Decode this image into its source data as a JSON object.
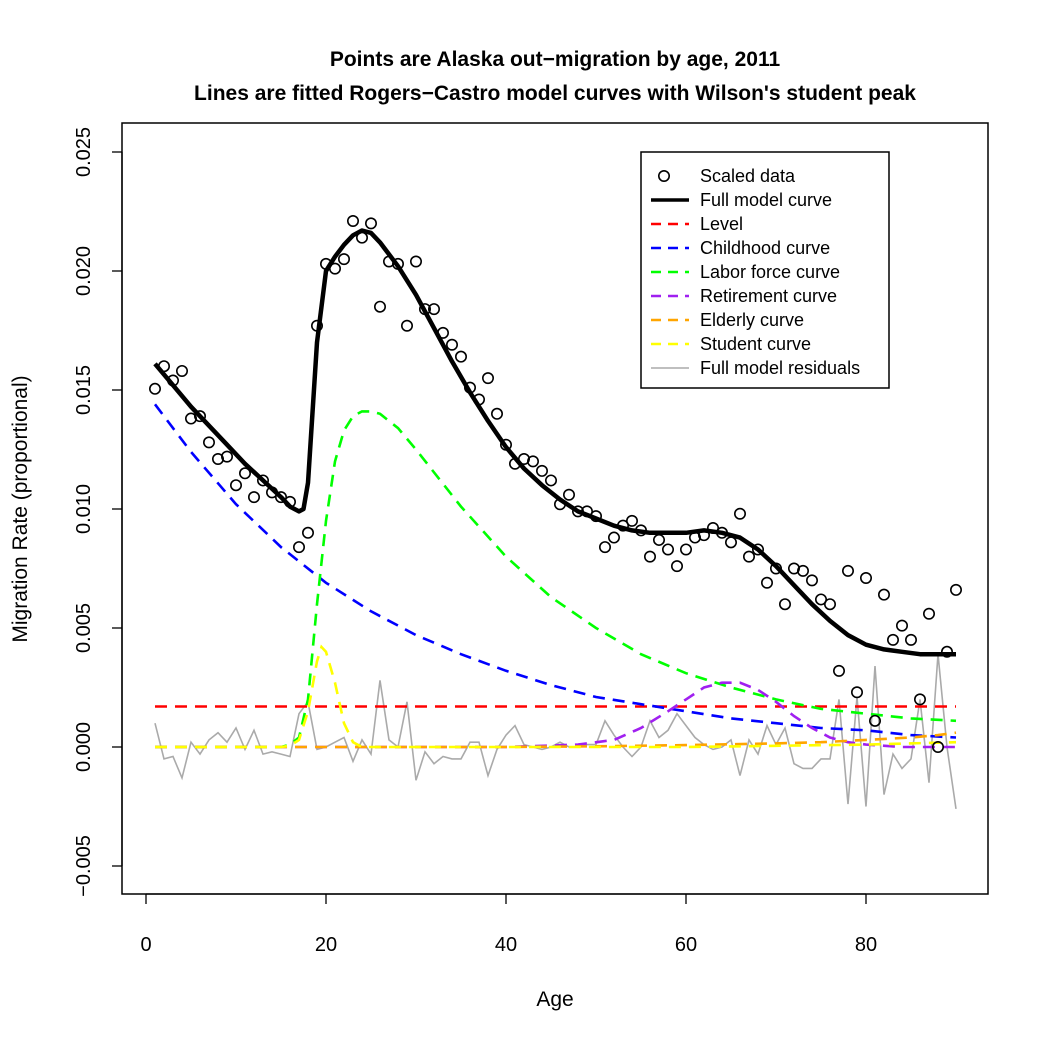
{
  "chart_data": {
    "type": "scatter",
    "title": "Points are Alaska out−migration by age, 2011",
    "subtitle": "Lines are fitted Rogers−Castro model curves with Wilson's student peak",
    "xlabel": "Age",
    "ylabel": "Migration Rate (proportional)",
    "xlim": [
      0,
      90
    ],
    "ylim": [
      -0.005,
      0.025
    ],
    "x_ticks": [
      0,
      20,
      40,
      60,
      80
    ],
    "x_tick_labels": [
      "0",
      "20",
      "40",
      "60",
      "80"
    ],
    "y_ticks": [
      -0.005,
      0,
      0.005,
      0.01,
      0.015,
      0.02,
      0.025
    ],
    "y_tick_labels": [
      "−0.005",
      "0.000",
      "0.005",
      "0.010",
      "0.015",
      "0.020",
      "0.025"
    ],
    "grid": false,
    "legend_position": "top-right",
    "legend": [
      {
        "label": "Scaled data",
        "kind": "point",
        "color": "#000000"
      },
      {
        "label": "Full model curve",
        "kind": "solid",
        "color": "#000000"
      },
      {
        "label": "Level",
        "kind": "dashed",
        "color": "#ff0000"
      },
      {
        "label": "Childhood curve",
        "kind": "dashed",
        "color": "#0000ff"
      },
      {
        "label": "Labor force curve",
        "kind": "dashed",
        "color": "#00ff00"
      },
      {
        "label": "Retirement curve",
        "kind": "dashed",
        "color": "#a020f0"
      },
      {
        "label": "Elderly curve",
        "kind": "dashed",
        "color": "#ffa500"
      },
      {
        "label": "Student curve",
        "kind": "dashed",
        "color": "#ffff00"
      },
      {
        "label": "Full model residuals",
        "kind": "solid",
        "color": "#aaaaaa"
      }
    ],
    "scaled_data": [
      [
        1,
        0.01505
      ],
      [
        2,
        0.016
      ],
      [
        3,
        0.0154
      ],
      [
        4,
        0.0158
      ],
      [
        5,
        0.0138
      ],
      [
        6,
        0.0139
      ],
      [
        7,
        0.0128
      ],
      [
        8,
        0.0121
      ],
      [
        9,
        0.0122
      ],
      [
        10,
        0.011
      ],
      [
        11,
        0.0115
      ],
      [
        12,
        0.0105
      ],
      [
        13,
        0.0112
      ],
      [
        14,
        0.0107
      ],
      [
        15,
        0.0105
      ],
      [
        16,
        0.0103
      ],
      [
        17,
        0.0084
      ],
      [
        18,
        0.009
      ],
      [
        19,
        0.0177
      ],
      [
        20,
        0.0203
      ],
      [
        21,
        0.0201
      ],
      [
        22,
        0.0205
      ],
      [
        23,
        0.0221
      ],
      [
        24,
        0.0214
      ],
      [
        25,
        0.022
      ],
      [
        26,
        0.0185
      ],
      [
        27,
        0.0204
      ],
      [
        28,
        0.0203
      ],
      [
        29,
        0.0177
      ],
      [
        30,
        0.0204
      ],
      [
        31,
        0.0184
      ],
      [
        32,
        0.0184
      ],
      [
        33,
        0.0174
      ],
      [
        34,
        0.0169
      ],
      [
        35,
        0.0164
      ],
      [
        36,
        0.0151
      ],
      [
        37,
        0.0146
      ],
      [
        38,
        0.0155
      ],
      [
        39,
        0.014
      ],
      [
        40,
        0.0127
      ],
      [
        41,
        0.0119
      ],
      [
        42,
        0.0121
      ],
      [
        43,
        0.012
      ],
      [
        44,
        0.0116
      ],
      [
        45,
        0.0112
      ],
      [
        46,
        0.0102
      ],
      [
        47,
        0.0106
      ],
      [
        48,
        0.0099
      ],
      [
        49,
        0.0099
      ],
      [
        50,
        0.0097
      ],
      [
        51,
        0.0084
      ],
      [
        52,
        0.0088
      ],
      [
        53,
        0.0093
      ],
      [
        54,
        0.0095
      ],
      [
        55,
        0.0091
      ],
      [
        56,
        0.008
      ],
      [
        57,
        0.0087
      ],
      [
        58,
        0.0083
      ],
      [
        59,
        0.0076
      ],
      [
        60,
        0.0083
      ],
      [
        61,
        0.0088
      ],
      [
        62,
        0.0089
      ],
      [
        63,
        0.0092
      ],
      [
        64,
        0.009
      ],
      [
        65,
        0.0086
      ],
      [
        66,
        0.0098
      ],
      [
        67,
        0.008
      ],
      [
        68,
        0.0083
      ],
      [
        69,
        0.0069
      ],
      [
        70,
        0.0075
      ],
      [
        71,
        0.006
      ],
      [
        72,
        0.0075
      ],
      [
        73,
        0.0074
      ],
      [
        74,
        0.007
      ],
      [
        75,
        0.0062
      ],
      [
        76,
        0.006
      ],
      [
        77,
        0.0032
      ],
      [
        78,
        0.0074
      ],
      [
        79,
        0.0023
      ],
      [
        80,
        0.0071
      ],
      [
        81,
        0.0011
      ],
      [
        82,
        0.0064
      ],
      [
        83,
        0.0045
      ],
      [
        84,
        0.0051
      ],
      [
        85,
        0.0045
      ],
      [
        86,
        0.002
      ],
      [
        87,
        0.0056
      ],
      [
        88,
        0.0
      ],
      [
        89,
        0.004
      ],
      [
        90,
        0.0066
      ]
    ],
    "full_model_curve": [
      [
        1,
        0.0161
      ],
      [
        3,
        0.0152
      ],
      [
        5,
        0.0143
      ],
      [
        7,
        0.0135
      ],
      [
        9,
        0.0127
      ],
      [
        11,
        0.0119
      ],
      [
        13,
        0.0112
      ],
      [
        15,
        0.0105
      ],
      [
        16,
        0.0101
      ],
      [
        17,
        0.0099
      ],
      [
        17.5,
        0.01
      ],
      [
        18,
        0.0111
      ],
      [
        19,
        0.017
      ],
      [
        20,
        0.02
      ],
      [
        21,
        0.0206
      ],
      [
        22,
        0.0211
      ],
      [
        23,
        0.0215
      ],
      [
        24,
        0.0217
      ],
      [
        25,
        0.0216
      ],
      [
        26,
        0.0212
      ],
      [
        28,
        0.0202
      ],
      [
        30,
        0.019
      ],
      [
        32,
        0.0176
      ],
      [
        34,
        0.0162
      ],
      [
        36,
        0.0149
      ],
      [
        38,
        0.0137
      ],
      [
        40,
        0.0126
      ],
      [
        42,
        0.0117
      ],
      [
        44,
        0.011
      ],
      [
        46,
        0.0104
      ],
      [
        48,
        0.0099
      ],
      [
        50,
        0.0096
      ],
      [
        52,
        0.0093
      ],
      [
        54,
        0.0091
      ],
      [
        56,
        0.009
      ],
      [
        58,
        0.009
      ],
      [
        60,
        0.009
      ],
      [
        62,
        0.0091
      ],
      [
        64,
        0.009
      ],
      [
        66,
        0.0088
      ],
      [
        68,
        0.0083
      ],
      [
        70,
        0.0076
      ],
      [
        72,
        0.0068
      ],
      [
        74,
        0.006
      ],
      [
        76,
        0.0053
      ],
      [
        78,
        0.0047
      ],
      [
        80,
        0.0043
      ],
      [
        82,
        0.0041
      ],
      [
        84,
        0.004
      ],
      [
        86,
        0.0039
      ],
      [
        88,
        0.0039
      ],
      [
        90,
        0.0039
      ]
    ],
    "level": [
      [
        1,
        0.0017
      ],
      [
        90,
        0.0017
      ]
    ],
    "childhood_curve": [
      [
        1,
        0.0144
      ],
      [
        5,
        0.0124
      ],
      [
        10,
        0.0102
      ],
      [
        15,
        0.0084
      ],
      [
        20,
        0.0069
      ],
      [
        25,
        0.0057
      ],
      [
        30,
        0.0047
      ],
      [
        35,
        0.0039
      ],
      [
        40,
        0.0032
      ],
      [
        45,
        0.0026
      ],
      [
        50,
        0.0021
      ],
      [
        55,
        0.0018
      ],
      [
        60,
        0.0015
      ],
      [
        65,
        0.0012
      ],
      [
        70,
        0.001
      ],
      [
        75,
        0.0008
      ],
      [
        80,
        0.0007
      ],
      [
        85,
        0.0005
      ],
      [
        90,
        0.0004
      ]
    ],
    "labor_force_curve": [
      [
        1,
        0.0
      ],
      [
        10,
        0.0
      ],
      [
        15,
        0.0
      ],
      [
        16,
        0.0001
      ],
      [
        17,
        0.0004
      ],
      [
        18,
        0.002
      ],
      [
        19,
        0.006
      ],
      [
        20,
        0.0095
      ],
      [
        21,
        0.012
      ],
      [
        22,
        0.0133
      ],
      [
        23,
        0.0139
      ],
      [
        24,
        0.0141
      ],
      [
        25,
        0.0141
      ],
      [
        26,
        0.014
      ],
      [
        28,
        0.0134
      ],
      [
        30,
        0.0125
      ],
      [
        35,
        0.0101
      ],
      [
        40,
        0.008
      ],
      [
        45,
        0.0063
      ],
      [
        50,
        0.005
      ],
      [
        55,
        0.0039
      ],
      [
        60,
        0.0031
      ],
      [
        65,
        0.0025
      ],
      [
        70,
        0.002
      ],
      [
        75,
        0.0016
      ],
      [
        80,
        0.0014
      ],
      [
        85,
        0.0012
      ],
      [
        90,
        0.0011
      ]
    ],
    "retirement_curve": [
      [
        1,
        0.0
      ],
      [
        40,
        0.0
      ],
      [
        48,
        0.0001
      ],
      [
        52,
        0.0003
      ],
      [
        55,
        0.0008
      ],
      [
        58,
        0.0015
      ],
      [
        60,
        0.002
      ],
      [
        62,
        0.0025
      ],
      [
        64,
        0.0027
      ],
      [
        66,
        0.0027
      ],
      [
        68,
        0.0024
      ],
      [
        70,
        0.0019
      ],
      [
        72,
        0.0013
      ],
      [
        74,
        0.0008
      ],
      [
        76,
        0.0004
      ],
      [
        78,
        0.0002
      ],
      [
        80,
        0.0001
      ],
      [
        84,
        0.0
      ],
      [
        90,
        0.0
      ]
    ],
    "elderly_curve": [
      [
        1,
        0.0
      ],
      [
        40,
        0.0
      ],
      [
        50,
        3e-05
      ],
      [
        60,
        8e-05
      ],
      [
        70,
        0.00015
      ],
      [
        75,
        0.0002
      ],
      [
        80,
        0.0003
      ],
      [
        85,
        0.0004
      ],
      [
        88,
        0.0005
      ],
      [
        90,
        0.0006
      ]
    ],
    "student_curve": [
      [
        1,
        0.0
      ],
      [
        15,
        0.0
      ],
      [
        16,
        5e-05
      ],
      [
        17,
        0.0003
      ],
      [
        18,
        0.0015
      ],
      [
        19,
        0.0036
      ],
      [
        19.5,
        0.0042
      ],
      [
        20,
        0.004
      ],
      [
        21,
        0.0027
      ],
      [
        22,
        0.001
      ],
      [
        23,
        0.0002
      ],
      [
        24,
        0.0
      ],
      [
        60,
        0.0
      ],
      [
        70,
        5e-05
      ],
      [
        80,
        0.0001
      ],
      [
        90,
        0.0002
      ]
    ],
    "full_model_residuals": [
      [
        1,
        0.001
      ],
      [
        2,
        -0.0005
      ],
      [
        3,
        -0.0004
      ],
      [
        4,
        -0.0013
      ],
      [
        5,
        0.0002
      ],
      [
        6,
        -0.0003
      ],
      [
        7,
        0.0003
      ],
      [
        8,
        0.0006
      ],
      [
        9,
        0.0002
      ],
      [
        10,
        0.0008
      ],
      [
        11,
        -0.0001
      ],
      [
        12,
        0.0007
      ],
      [
        13,
        -0.0003
      ],
      [
        14,
        -0.0002
      ],
      [
        15,
        -0.0003
      ],
      [
        16,
        -0.0004
      ],
      [
        17,
        0.0014
      ],
      [
        18,
        0.0019
      ],
      [
        19,
        -0.0001
      ],
      [
        20,
        0.0
      ],
      [
        21,
        0.0002
      ],
      [
        22,
        0.0004
      ],
      [
        23,
        -0.0006
      ],
      [
        24,
        0.0003
      ],
      [
        25,
        -0.0003
      ],
      [
        26,
        0.0028
      ],
      [
        27,
        0.0003
      ],
      [
        28,
        0.0
      ],
      [
        29,
        0.0019
      ],
      [
        30,
        -0.0014
      ],
      [
        31,
        -0.0002
      ],
      [
        32,
        -0.0007
      ],
      [
        33,
        -0.0004
      ],
      [
        34,
        -0.0005
      ],
      [
        35,
        -0.0005
      ],
      [
        36,
        0.0002
      ],
      [
        37,
        0.0002
      ],
      [
        38,
        -0.0012
      ],
      [
        39,
        -0.0001
      ],
      [
        40,
        0.0005
      ],
      [
        41,
        0.0009
      ],
      [
        42,
        0.0001
      ],
      [
        43,
        0.0
      ],
      [
        44,
        -0.0001
      ],
      [
        45,
        0.0
      ],
      [
        46,
        0.0002
      ],
      [
        47,
        0.0
      ],
      [
        48,
        0.0
      ],
      [
        49,
        0.0001
      ],
      [
        50,
        0.0001
      ],
      [
        51,
        0.0011
      ],
      [
        52,
        0.0005
      ],
      [
        53,
        0.0
      ],
      [
        54,
        -0.0004
      ],
      [
        55,
        0.0
      ],
      [
        56,
        0.0011
      ],
      [
        57,
        0.0004
      ],
      [
        58,
        0.0007
      ],
      [
        59,
        0.0014
      ],
      [
        60,
        0.0009
      ],
      [
        61,
        0.0004
      ],
      [
        62,
        0.0001
      ],
      [
        63,
        -0.0001
      ],
      [
        64,
        0.0
      ],
      [
        65,
        0.0003
      ],
      [
        66,
        -0.0012
      ],
      [
        67,
        0.0003
      ],
      [
        68,
        -0.0003
      ],
      [
        69,
        0.0009
      ],
      [
        70,
        0.0001
      ],
      [
        71,
        0.0008
      ],
      [
        72,
        -0.0007
      ],
      [
        73,
        -0.0009
      ],
      [
        74,
        -0.0009
      ],
      [
        75,
        -0.0005
      ],
      [
        76,
        -0.0005
      ],
      [
        77,
        0.002
      ],
      [
        78,
        -0.0024
      ],
      [
        79,
        0.0021
      ],
      [
        80,
        -0.0025
      ],
      [
        81,
        0.0034
      ],
      [
        82,
        -0.002
      ],
      [
        83,
        -0.0003
      ],
      [
        84,
        -0.0009
      ],
      [
        85,
        -0.0005
      ],
      [
        86,
        0.002
      ],
      [
        87,
        -0.0015
      ],
      [
        88,
        0.0039
      ],
      [
        89,
        0.0
      ],
      [
        90,
        -0.0026
      ]
    ]
  }
}
